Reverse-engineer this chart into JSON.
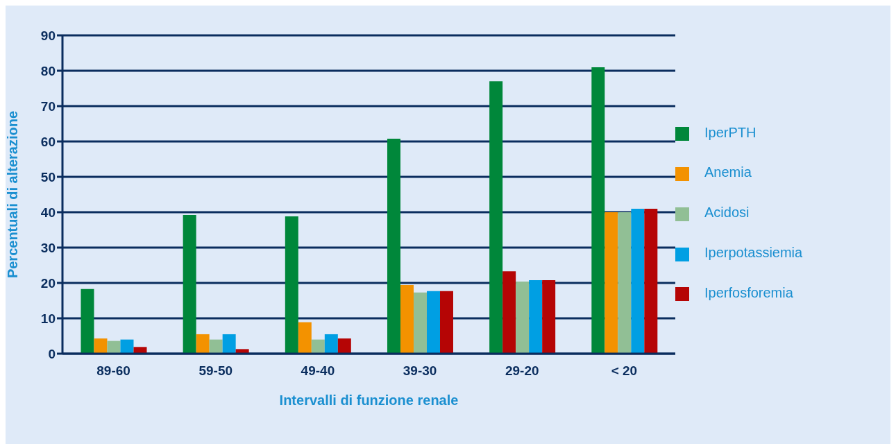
{
  "chart_data": {
    "type": "bar",
    "xlabel": "Intervalli di funzione renale",
    "ylabel": "Percentuali di alterazione",
    "categories": [
      "89-60",
      "59-50",
      "49-40",
      "39-30",
      "29-20",
      "< 20"
    ],
    "series": [
      {
        "name": "IperPTH",
        "color": "#00873a",
        "values": [
          18.3,
          39.2,
          38.8,
          60.8,
          77.0,
          81.0
        ]
      },
      {
        "name": "Anemia",
        "color": "#f39200",
        "colors": [
          "#f39200",
          "#f39200",
          "#f39200",
          "#f39200",
          "#b50505",
          "#f39200"
        ],
        "values": [
          4.3,
          5.5,
          8.9,
          19.4,
          23.3,
          40.0
        ]
      },
      {
        "name": "Acidosi",
        "color": "#91bf95",
        "values": [
          3.6,
          4.0,
          4.0,
          17.3,
          20.4,
          40.0
        ]
      },
      {
        "name": "Iperpotassiemia",
        "color": "#009fe3",
        "values": [
          4.0,
          5.5,
          5.5,
          17.7,
          20.8,
          41.0
        ]
      },
      {
        "name": "Iperfosforemia",
        "color": "#b50505",
        "values": [
          1.9,
          1.3,
          4.3,
          17.7,
          20.8,
          41.0
        ]
      }
    ],
    "ylim": [
      0,
      90
    ],
    "yticks": [
      0,
      10,
      20,
      30,
      40,
      50,
      60,
      70,
      80,
      90
    ],
    "grid": "y",
    "legend": "right"
  }
}
